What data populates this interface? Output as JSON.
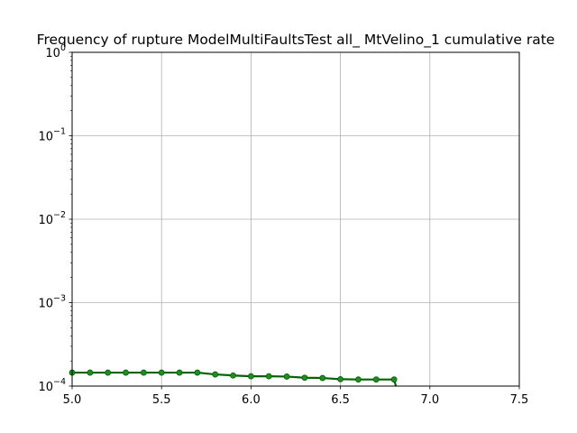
{
  "chart_data": {
    "type": "line",
    "title": "Frequency of rupture ModelMultiFaultsTest all_ MtVelino_1 cumulative rate",
    "xlabel": "",
    "ylabel": "",
    "xlim": [
      5.0,
      7.5
    ],
    "ylim": [
      0.0001,
      1
    ],
    "yscale": "log",
    "grid": true,
    "x_ticks": [
      {
        "value": 5.0,
        "label": "5.0"
      },
      {
        "value": 5.5,
        "label": "5.5"
      },
      {
        "value": 6.0,
        "label": "6.0"
      },
      {
        "value": 6.5,
        "label": "6.5"
      },
      {
        "value": 7.0,
        "label": "7.0"
      },
      {
        "value": 7.5,
        "label": "7.5"
      }
    ],
    "y_ticks": [
      {
        "value": 0.0001,
        "base": "10",
        "exp": "−4"
      },
      {
        "value": 0.001,
        "base": "10",
        "exp": "−3"
      },
      {
        "value": 0.01,
        "base": "10",
        "exp": "−2"
      },
      {
        "value": 0.1,
        "base": "10",
        "exp": "−1"
      },
      {
        "value": 1,
        "base": "10",
        "exp": "0"
      }
    ],
    "series": [
      {
        "color": "#006400",
        "marker_color": "#228b22",
        "x": [
          5.0,
          5.1,
          5.2,
          5.3,
          5.4,
          5.5,
          5.6,
          5.7,
          5.8,
          5.9,
          6.0,
          6.1,
          6.2,
          6.3,
          6.4,
          6.5,
          6.6,
          6.7,
          6.8
        ],
        "y": [
          0.000145,
          0.000145,
          0.000145,
          0.000145,
          0.000145,
          0.000145,
          0.000145,
          0.000145,
          0.000138,
          0.000134,
          0.000131,
          0.000131,
          0.00013,
          0.000126,
          0.000125,
          0.000121,
          0.00012,
          0.00012,
          0.00012
        ],
        "tail": {
          "x": 6.81,
          "y": 0.0001
        }
      }
    ]
  }
}
